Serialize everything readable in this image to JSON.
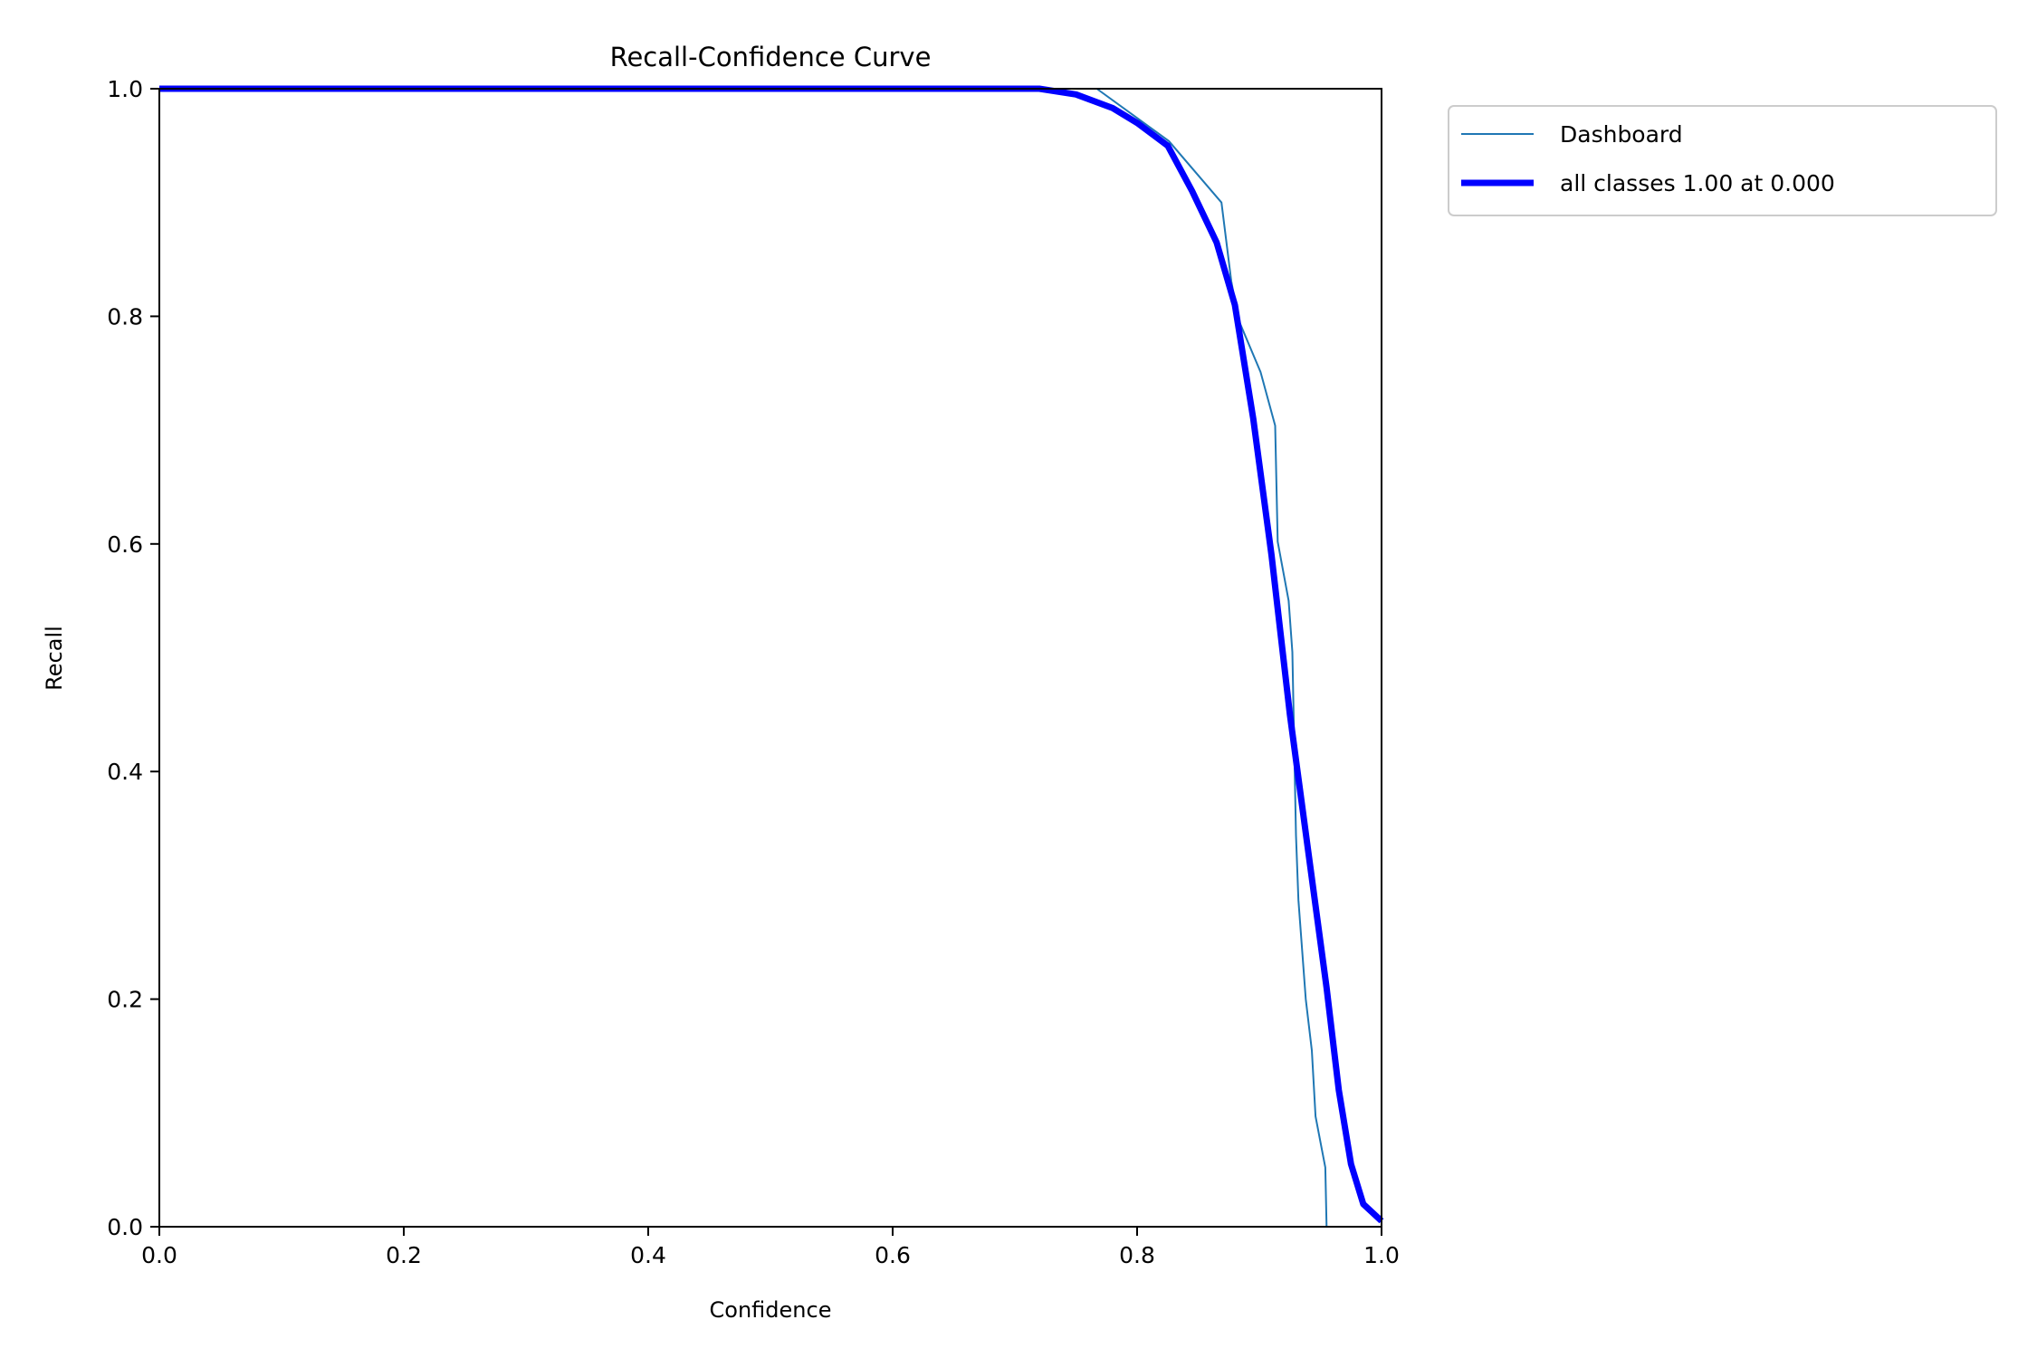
{
  "chart_data": {
    "type": "line",
    "title": "Recall-Confidence Curve",
    "xlabel": "Confidence",
    "ylabel": "Recall",
    "xlim": [
      0,
      1
    ],
    "ylim": [
      0,
      1
    ],
    "xticks": [
      "0.0",
      "0.2",
      "0.4",
      "0.6",
      "0.8",
      "1.0"
    ],
    "yticks": [
      "0.0",
      "0.2",
      "0.4",
      "0.6",
      "0.8",
      "1.0"
    ],
    "grid": false,
    "legend_placement": "outside-top-right",
    "series": [
      {
        "name": "Dashboard",
        "color": "#1f77b4",
        "x": [
          0,
          0.767,
          0.826,
          0.869,
          0.877,
          0.883,
          0.901,
          0.913,
          0.915,
          0.924,
          0.927,
          0.93,
          0.932,
          0.938,
          0.943,
          0.946,
          0.954,
          0.955,
          1.0
        ],
        "y": [
          1,
          1,
          0.954,
          0.9,
          0.831,
          0.797,
          0.751,
          0.704,
          0.602,
          0.55,
          0.505,
          0.344,
          0.287,
          0.2,
          0.155,
          0.097,
          0.052,
          0,
          0
        ]
      },
      {
        "name": "all classes 1.00 at 0.000",
        "color": "#0000ff",
        "x": [
          0,
          0.72,
          0.75,
          0.78,
          0.8,
          0.825,
          0.845,
          0.865,
          0.88,
          0.895,
          0.91,
          0.925,
          0.94,
          0.955,
          0.965,
          0.975,
          0.985,
          1.0
        ],
        "y": [
          1,
          1,
          0.995,
          0.983,
          0.97,
          0.95,
          0.91,
          0.865,
          0.81,
          0.71,
          0.59,
          0.45,
          0.33,
          0.21,
          0.12,
          0.055,
          0.02,
          0.005
        ]
      }
    ]
  }
}
